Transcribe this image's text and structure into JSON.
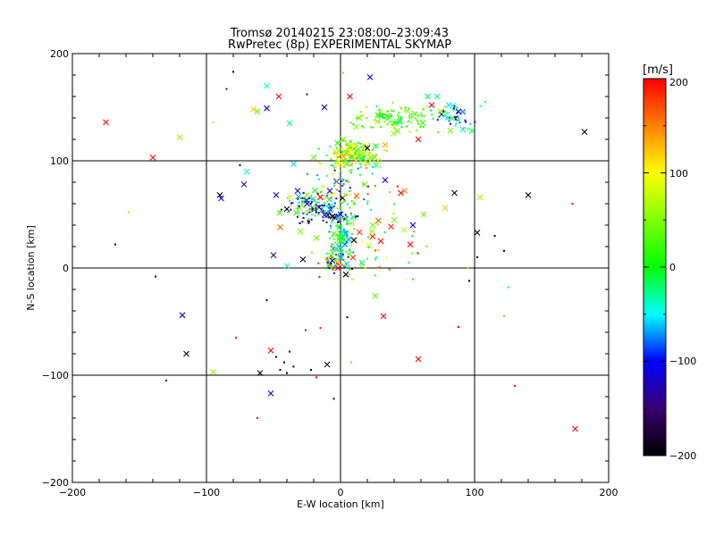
{
  "chart_data": {
    "type": "scatter",
    "title": "Tromsø 20140215 23:08:00–23:09:43",
    "subtitle": "RwPretec (8p) EXPERIMENTAL SKYMAP",
    "xlabel": "E-W location [km]",
    "ylabel": "N-S location [km]",
    "xlim": [
      -200,
      200
    ],
    "ylim": [
      -200,
      200
    ],
    "xticks": [
      "−200",
      "−100",
      "0",
      "100",
      "200"
    ],
    "yticks": [
      "−200",
      "−100",
      "0",
      "100",
      "200"
    ],
    "grid_x": [
      -100,
      0,
      100
    ],
    "grid_y": [
      -100,
      0,
      100
    ],
    "colorbar": {
      "label": "[m/s]",
      "min": -200,
      "max": 200,
      "ticks": [
        "−200",
        "−100",
        "0",
        "100",
        "200"
      ]
    },
    "marker_legend": "large crosses and small dots",
    "points": [
      {
        "x": -175,
        "y": 136,
        "v": 190,
        "m": "x"
      },
      {
        "x": -140,
        "y": 103,
        "v": 200,
        "m": "x"
      },
      {
        "x": -120,
        "y": 122,
        "v": 60,
        "m": "x"
      },
      {
        "x": -118,
        "y": -44,
        "v": -110,
        "m": "x"
      },
      {
        "x": -115,
        "y": -80,
        "v": -200,
        "m": "x"
      },
      {
        "x": -95,
        "y": -97,
        "v": 50,
        "m": "x"
      },
      {
        "x": -90,
        "y": 68,
        "v": -200,
        "m": "x"
      },
      {
        "x": -89,
        "y": 65,
        "v": -110,
        "m": "x"
      },
      {
        "x": -80,
        "y": 183,
        "v": -200,
        "m": "."
      },
      {
        "x": -75,
        "y": 96,
        "v": -200,
        "m": "."
      },
      {
        "x": -72,
        "y": 78,
        "v": -150,
        "m": "x"
      },
      {
        "x": -70,
        "y": 90,
        "v": -40,
        "m": "x"
      },
      {
        "x": -65,
        "y": 148,
        "v": 120,
        "m": "x"
      },
      {
        "x": -62,
        "y": 146,
        "v": 40,
        "m": "x"
      },
      {
        "x": -60,
        "y": -98,
        "v": -200,
        "m": "x"
      },
      {
        "x": -55,
        "y": 170,
        "v": -40,
        "m": "x"
      },
      {
        "x": -55,
        "y": 149,
        "v": -120,
        "m": "x"
      },
      {
        "x": -52,
        "y": -77,
        "v": 200,
        "m": "x"
      },
      {
        "x": -52,
        "y": -117,
        "v": -110,
        "m": "x"
      },
      {
        "x": -50,
        "y": 12,
        "v": -150,
        "m": "x"
      },
      {
        "x": -48,
        "y": 68,
        "v": -130,
        "m": "x"
      },
      {
        "x": -46,
        "y": 160,
        "v": 200,
        "m": "x"
      },
      {
        "x": -45,
        "y": 38,
        "v": 160,
        "m": "x"
      },
      {
        "x": -40,
        "y": 55,
        "v": -200,
        "m": "x"
      },
      {
        "x": -40,
        "y": 2,
        "v": -40,
        "m": "x"
      },
      {
        "x": -38,
        "y": 135,
        "v": -30,
        "m": "x"
      },
      {
        "x": -35,
        "y": 97,
        "v": -60,
        "m": "x"
      },
      {
        "x": -32,
        "y": 72,
        "v": -120,
        "m": "x"
      },
      {
        "x": -30,
        "y": 34,
        "v": 50,
        "m": "x"
      },
      {
        "x": -28,
        "y": 8,
        "v": -180,
        "m": "x"
      },
      {
        "x": -25,
        "y": 60,
        "v": -130,
        "m": "x"
      },
      {
        "x": -20,
        "y": 103,
        "v": 40,
        "m": "x"
      },
      {
        "x": -18,
        "y": 28,
        "v": 40,
        "m": "x"
      },
      {
        "x": -15,
        "y": 66,
        "v": 200,
        "m": "x"
      },
      {
        "x": -12,
        "y": 150,
        "v": -120,
        "m": "x"
      },
      {
        "x": -10,
        "y": -90,
        "v": -200,
        "m": "x"
      },
      {
        "x": -8,
        "y": 72,
        "v": -110,
        "m": "x"
      },
      {
        "x": -6,
        "y": 48,
        "v": -200,
        "m": "x"
      },
      {
        "x": -5,
        "y": 32,
        "v": 40,
        "m": "x"
      },
      {
        "x": -3,
        "y": 18,
        "v": -60,
        "m": "x"
      },
      {
        "x": -2,
        "y": 0,
        "v": 200,
        "m": "x"
      },
      {
        "x": 0,
        "y": 50,
        "v": -110,
        "m": "x"
      },
      {
        "x": 2,
        "y": 120,
        "v": 40,
        "m": "x"
      },
      {
        "x": 4,
        "y": -6,
        "v": -200,
        "m": "x"
      },
      {
        "x": 5,
        "y": 106,
        "v": 120,
        "m": "x"
      },
      {
        "x": 7,
        "y": 160,
        "v": 200,
        "m": "x"
      },
      {
        "x": 8,
        "y": 42,
        "v": 60,
        "m": "x"
      },
      {
        "x": 10,
        "y": 26,
        "v": -200,
        "m": "x"
      },
      {
        "x": 14,
        "y": 140,
        "v": 40,
        "m": "x"
      },
      {
        "x": 16,
        "y": 5,
        "v": -30,
        "m": "x"
      },
      {
        "x": 18,
        "y": 78,
        "v": 40,
        "m": "x"
      },
      {
        "x": 20,
        "y": 112,
        "v": -200,
        "m": "x"
      },
      {
        "x": 22,
        "y": 178,
        "v": -110,
        "m": "x"
      },
      {
        "x": 24,
        "y": 40,
        "v": 40,
        "m": "x"
      },
      {
        "x": 26,
        "y": -26,
        "v": 40,
        "m": "x"
      },
      {
        "x": 28,
        "y": 100,
        "v": 120,
        "m": "x"
      },
      {
        "x": 30,
        "y": 25,
        "v": 200,
        "m": "x"
      },
      {
        "x": 32,
        "y": -45,
        "v": 200,
        "m": "x"
      },
      {
        "x": 35,
        "y": 142,
        "v": 40,
        "m": "x"
      },
      {
        "x": 40,
        "y": 45,
        "v": 40,
        "m": "x"
      },
      {
        "x": 45,
        "y": 70,
        "v": 200,
        "m": "x"
      },
      {
        "x": 48,
        "y": 72,
        "v": 140,
        "m": "x"
      },
      {
        "x": 52,
        "y": 22,
        "v": 200,
        "m": "x"
      },
      {
        "x": 54,
        "y": 40,
        "v": -110,
        "m": "x"
      },
      {
        "x": 58,
        "y": 120,
        "v": 200,
        "m": "x"
      },
      {
        "x": 58,
        "y": -85,
        "v": 200,
        "m": "x"
      },
      {
        "x": 62,
        "y": 50,
        "v": 40,
        "m": "x"
      },
      {
        "x": 65,
        "y": 160,
        "v": -20,
        "m": "x"
      },
      {
        "x": 68,
        "y": 152,
        "v": 200,
        "m": "x"
      },
      {
        "x": 72,
        "y": 160,
        "v": -30,
        "m": "x"
      },
      {
        "x": 75,
        "y": 146,
        "v": 60,
        "m": "x"
      },
      {
        "x": 78,
        "y": 56,
        "v": 120,
        "m": "x"
      },
      {
        "x": 80,
        "y": 140,
        "v": -40,
        "m": "x"
      },
      {
        "x": 85,
        "y": 70,
        "v": -200,
        "m": "x"
      },
      {
        "x": 88,
        "y": 146,
        "v": -110,
        "m": "x"
      },
      {
        "x": 98,
        "y": 128,
        "v": -20,
        "m": "x"
      },
      {
        "x": 102,
        "y": 33,
        "v": -200,
        "m": "x"
      },
      {
        "x": 104,
        "y": 66,
        "v": 60,
        "m": "x"
      },
      {
        "x": 140,
        "y": 68,
        "v": -200,
        "m": "x"
      },
      {
        "x": 175,
        "y": -150,
        "v": 200,
        "m": "x"
      },
      {
        "x": 182,
        "y": 127,
        "v": -200,
        "m": "x"
      },
      {
        "x": -168,
        "y": 22,
        "v": -200,
        "m": "."
      },
      {
        "x": -158,
        "y": 52,
        "v": 120,
        "m": "."
      },
      {
        "x": -138,
        "y": -8,
        "v": -200,
        "m": "."
      },
      {
        "x": -130,
        "y": -105,
        "v": -110,
        "m": "."
      },
      {
        "x": -95,
        "y": 136,
        "v": 60,
        "m": "."
      },
      {
        "x": -85,
        "y": 167,
        "v": -130,
        "m": "."
      },
      {
        "x": -78,
        "y": -65,
        "v": 200,
        "m": "."
      },
      {
        "x": -62,
        "y": -140,
        "v": 200,
        "m": "."
      },
      {
        "x": -55,
        "y": -30,
        "v": -200,
        "m": "."
      },
      {
        "x": -48,
        "y": -83,
        "v": -200,
        "m": "."
      },
      {
        "x": -45,
        "y": -95,
        "v": -200,
        "m": "."
      },
      {
        "x": -42,
        "y": -88,
        "v": -200,
        "m": "."
      },
      {
        "x": -40,
        "y": -98,
        "v": -200,
        "m": "."
      },
      {
        "x": -38,
        "y": -78,
        "v": -200,
        "m": "."
      },
      {
        "x": -35,
        "y": -92,
        "v": -200,
        "m": "."
      },
      {
        "x": -26,
        "y": -58,
        "v": 200,
        "m": "."
      },
      {
        "x": -22,
        "y": -95,
        "v": -200,
        "m": "."
      },
      {
        "x": -18,
        "y": -102,
        "v": 200,
        "m": "."
      },
      {
        "x": -15,
        "y": -56,
        "v": 200,
        "m": "."
      },
      {
        "x": -5,
        "y": -122,
        "v": -200,
        "m": "."
      },
      {
        "x": 5,
        "y": -46,
        "v": -200,
        "m": "."
      },
      {
        "x": 8,
        "y": -88,
        "v": 40,
        "m": "."
      },
      {
        "x": 88,
        "y": -55,
        "v": 200,
        "m": "."
      },
      {
        "x": 95,
        "y": 0,
        "v": 60,
        "m": "."
      },
      {
        "x": 96,
        "y": -12,
        "v": -200,
        "m": "."
      },
      {
        "x": 102,
        "y": 10,
        "v": -200,
        "m": "."
      },
      {
        "x": 115,
        "y": 30,
        "v": -200,
        "m": "."
      },
      {
        "x": 122,
        "y": 16,
        "v": -200,
        "m": "."
      },
      {
        "x": 122,
        "y": -45,
        "v": 30,
        "m": "."
      },
      {
        "x": 125,
        "y": -18,
        "v": -20,
        "m": "."
      },
      {
        "x": 130,
        "y": -110,
        "v": 200,
        "m": "."
      },
      {
        "x": 173,
        "y": 60,
        "v": 200,
        "m": "."
      },
      {
        "x": 108,
        "y": 155,
        "v": 30,
        "m": "."
      },
      {
        "x": 2,
        "y": 182,
        "v": 40,
        "m": "."
      },
      {
        "x": -25,
        "y": 162,
        "v": -110,
        "m": "."
      }
    ],
    "clusters": [
      {
        "cx": 10,
        "cy": 105,
        "sx": 18,
        "sy": 12,
        "n": 180,
        "vmin": -40,
        "vmax": 150
      },
      {
        "cx": 40,
        "cy": 140,
        "sx": 28,
        "sy": 12,
        "n": 120,
        "vmin": -30,
        "vmax": 80
      },
      {
        "cx": 85,
        "cy": 142,
        "sx": 15,
        "sy": 10,
        "n": 40,
        "vmin": -140,
        "vmax": 40
      },
      {
        "cx": -15,
        "cy": 55,
        "sx": 22,
        "sy": 12,
        "n": 140,
        "vmin": -200,
        "vmax": 60
      },
      {
        "cx": 0,
        "cy": 25,
        "sx": 8,
        "sy": 22,
        "n": 110,
        "vmin": -80,
        "vmax": 40
      },
      {
        "cx": 5,
        "cy": 75,
        "sx": 28,
        "sy": 18,
        "n": 70,
        "vmin": -120,
        "vmax": 200
      },
      {
        "cx": 30,
        "cy": 20,
        "sx": 30,
        "sy": 28,
        "n": 45,
        "vmin": -30,
        "vmax": 200
      },
      {
        "cx": -5,
        "cy": 5,
        "sx": 12,
        "sy": 10,
        "n": 50,
        "vmin": -200,
        "vmax": 200
      }
    ]
  }
}
